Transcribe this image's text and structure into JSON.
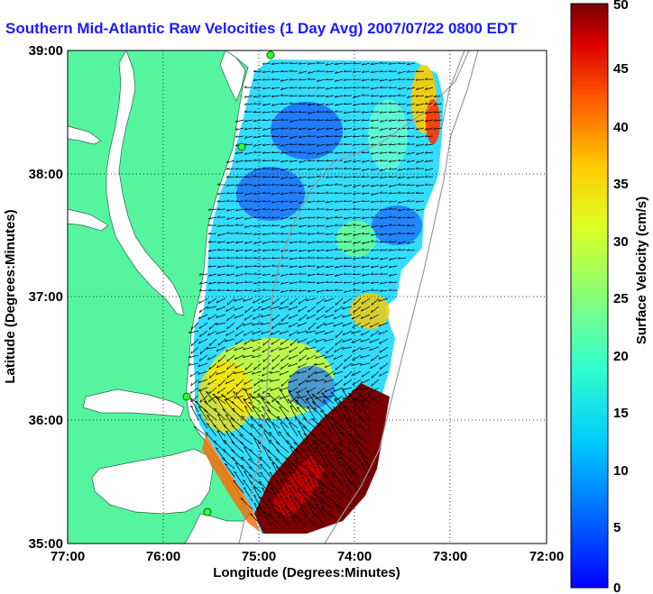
{
  "title": "Southern Mid-Atlantic Raw Velocities (1 Day Avg) 2007/07/22 0800 EDT",
  "x_axis": {
    "label": "Longitude (Degrees:Minutes)",
    "ticks": [
      "77:00",
      "76:00",
      "75:00",
      "74:00",
      "73:00",
      "72:00"
    ]
  },
  "y_axis": {
    "label": "Latitude (Degrees:Minutes)",
    "ticks": [
      "39:00",
      "38:00",
      "37:00",
      "36:00",
      "35:00"
    ]
  },
  "colorbar": {
    "label": "Surface Velocity (cm/s)",
    "ticks": [
      "50",
      "45",
      "40",
      "35",
      "30",
      "25",
      "20",
      "15",
      "10",
      "5",
      "0"
    ],
    "min": 0,
    "max": 50,
    "colormap": "jet"
  },
  "map": {
    "lon_range": [
      -77,
      -72
    ],
    "lat_range": [
      35,
      39
    ],
    "land_color": "#55f5a0",
    "water_color": "#ffffff",
    "grid": "dotted"
  }
}
